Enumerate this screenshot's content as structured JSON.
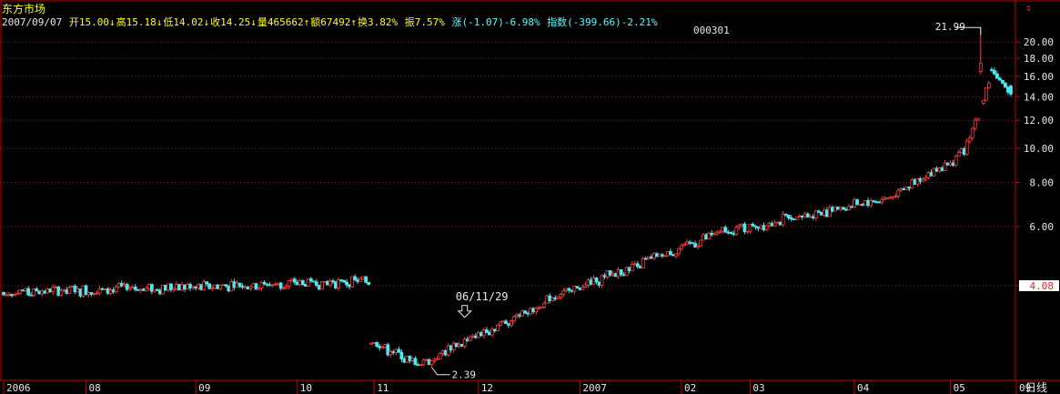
{
  "header": {
    "title": "东方市场",
    "date": "2007/09/07",
    "open": "开15.00↓",
    "high": "高15.18↓",
    "low": "低14.02↓",
    "close": "收14.25↓",
    "volume": "量465662↑",
    "amount": "额67492↑",
    "turnover": "换3.82%",
    "amplitude": "振7.57%",
    "change": "涨(-1.07)-6.98%",
    "index": "指数(-399.66)-2.21%",
    "code": "000301"
  },
  "colors": {
    "up": "#ff3b3b",
    "down": "#4fe8f0",
    "grid": "#9a1010",
    "axis": "#c00000",
    "label": "#e8e8e8",
    "price_tag_bg": "#ffffff",
    "price_tag_text": "#ff2020"
  },
  "chart_data": {
    "type": "candlestick",
    "scale": "log",
    "y_ticks": [
      4.08,
      6.0,
      8.0,
      10.0,
      12.0,
      14.0,
      16.0,
      18.0,
      20.0
    ],
    "y_tick_labels": [
      "4.08",
      "6.00",
      "8.00",
      "10.00",
      "12.00",
      "14.00",
      "16.00",
      "18.00",
      "20.00"
    ],
    "ylim": [
      2.2,
      24.5
    ],
    "x_labels": [
      "2006",
      "08",
      "09",
      "10",
      "11",
      "12",
      "2007",
      "02",
      "03",
      "04",
      "05",
      "09"
    ],
    "x_label_index": [
      0,
      30,
      70,
      107,
      135,
      173,
      210,
      247,
      272,
      310,
      345,
      369
    ],
    "period_label": "日线",
    "annotations": [
      {
        "text": "21.99",
        "type": "max"
      },
      {
        "text": "2.39",
        "type": "min"
      },
      {
        "text": "06/11/29",
        "type": "marker"
      }
    ],
    "segment_anchors": [
      {
        "start": 0,
        "end": 133,
        "from": 3.9,
        "to": 4.2
      },
      {
        "start": 134,
        "end": 150,
        "from": 2.85,
        "to": 2.45
      },
      {
        "start": 151,
        "end": 157,
        "from": 2.45,
        "to": 2.55
      },
      {
        "start": 158,
        "end": 200,
        "from": 2.6,
        "to": 3.75
      },
      {
        "start": 201,
        "end": 262,
        "from": 3.8,
        "to": 5.8
      },
      {
        "start": 263,
        "end": 321,
        "from": 5.8,
        "to": 7.2
      },
      {
        "start": 322,
        "end": 349,
        "from": 7.2,
        "to": 9.6
      },
      {
        "start": 350,
        "end": 359,
        "from": 9.8,
        "to": 15.2
      },
      {
        "start": 360,
        "end": 367,
        "from": 16.6,
        "to": 14.25
      }
    ],
    "gaps": [
      [
        134,
        200
      ],
      [
        210,
        235
      ]
    ],
    "last_candle": {
      "open": 15.0,
      "high": 15.18,
      "low": 14.02,
      "close": 14.25
    },
    "max_candle": {
      "open": 16.5,
      "high": 21.99,
      "low": 16.2,
      "close": 17.4
    }
  }
}
